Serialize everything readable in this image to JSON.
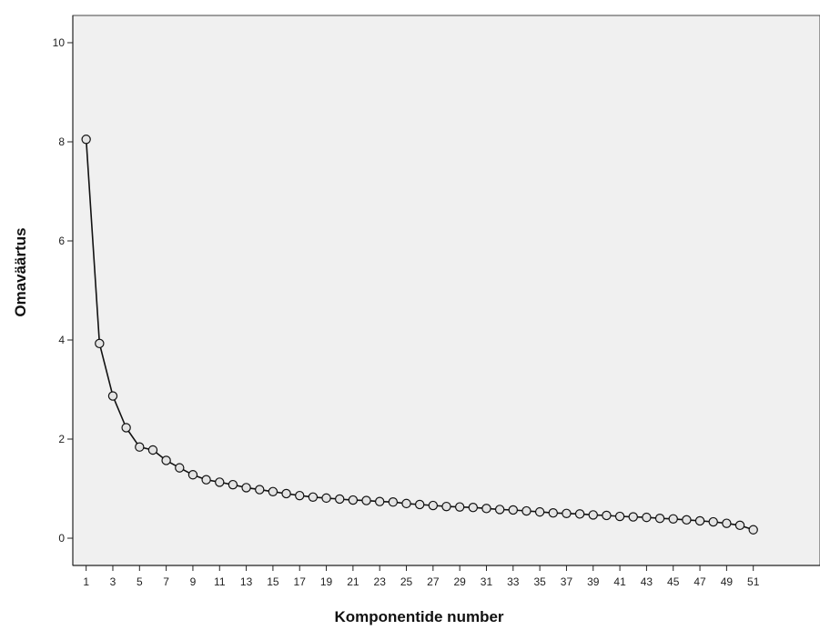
{
  "chart_data": {
    "type": "line",
    "xlabel": "Komponentide number",
    "ylabel": "Omaväärtus",
    "xlim": [
      0,
      56
    ],
    "ylim": [
      -0.55,
      10.55
    ],
    "y_ticks": [
      0,
      2,
      4,
      6,
      8,
      10
    ],
    "x_ticks": [
      1,
      3,
      5,
      7,
      9,
      11,
      13,
      15,
      17,
      19,
      21,
      23,
      25,
      27,
      29,
      31,
      33,
      35,
      37,
      39,
      41,
      43,
      45,
      47,
      49,
      51
    ],
    "grid": false,
    "colors": {
      "plot_background": "#f0f0f0",
      "line": "#111111",
      "marker_fill": "#e4e4e4"
    },
    "series": [
      {
        "marker": "open-circle",
        "x": [
          1,
          2,
          3,
          4,
          5,
          6,
          7,
          8,
          9,
          10,
          11,
          12,
          13,
          14,
          15,
          16,
          17,
          18,
          19,
          20,
          21,
          22,
          23,
          24,
          25,
          26,
          27,
          28,
          29,
          30,
          31,
          32,
          33,
          34,
          35,
          36,
          37,
          38,
          39,
          40,
          41,
          42,
          43,
          44,
          45,
          46,
          47,
          48,
          49,
          50,
          51
        ],
        "values": [
          8.05,
          3.93,
          2.87,
          2.23,
          1.84,
          1.78,
          1.57,
          1.42,
          1.28,
          1.18,
          1.13,
          1.08,
          1.02,
          0.98,
          0.94,
          0.9,
          0.86,
          0.83,
          0.81,
          0.79,
          0.77,
          0.76,
          0.74,
          0.73,
          0.7,
          0.68,
          0.66,
          0.64,
          0.63,
          0.62,
          0.6,
          0.58,
          0.57,
          0.55,
          0.53,
          0.51,
          0.5,
          0.49,
          0.47,
          0.46,
          0.44,
          0.43,
          0.42,
          0.4,
          0.39,
          0.37,
          0.35,
          0.33,
          0.3,
          0.26,
          0.17
        ]
      }
    ]
  }
}
